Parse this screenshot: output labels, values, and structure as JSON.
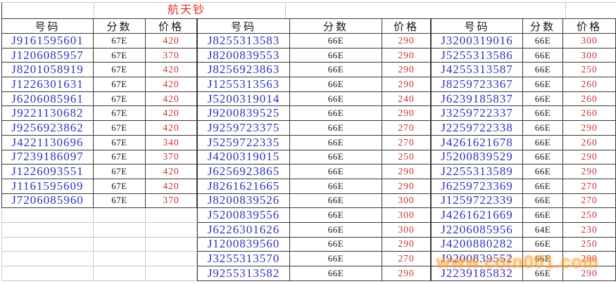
{
  "sheet": {
    "title": "航天钞",
    "watermark": "www.coin001.com",
    "header": [
      "号码",
      "分数",
      "价格"
    ],
    "groups": [
      {
        "name": "left",
        "empty_rows": 5,
        "rows": [
          [
            "J9161595601",
            "67E",
            "420"
          ],
          [
            "J1206085957",
            "67E",
            "370"
          ],
          [
            "J8201058919",
            "67E",
            "420"
          ],
          [
            "J1226301631",
            "67E",
            "420"
          ],
          [
            "J6206085961",
            "67E",
            "420"
          ],
          [
            "J9221130682",
            "67E",
            "420"
          ],
          [
            "J9256923862",
            "67E",
            "420"
          ],
          [
            "J4221130696",
            "67E",
            "340"
          ],
          [
            "J7239186097",
            "67E",
            "370"
          ],
          [
            "J1226093551",
            "67E",
            "420"
          ],
          [
            "J1161595609",
            "67E",
            "420"
          ],
          [
            "J7206085960",
            "67E",
            "370"
          ]
        ]
      },
      {
        "name": "middle",
        "empty_rows": 0,
        "rows": [
          [
            "J8255313583",
            "66E",
            "290"
          ],
          [
            "J8200839553",
            "66E",
            "290"
          ],
          [
            "J8256923863",
            "66E",
            "290"
          ],
          [
            "J1255313563",
            "66E",
            "290"
          ],
          [
            "J5200319014",
            "66E",
            "240"
          ],
          [
            "J9200839525",
            "66E",
            "290"
          ],
          [
            "J9259723375",
            "66E",
            "270"
          ],
          [
            "J5259722335",
            "66E",
            "270"
          ],
          [
            "J4200319015",
            "66E",
            "250"
          ],
          [
            "J6256923865",
            "66E",
            "290"
          ],
          [
            "J8261621665",
            "66E",
            "290"
          ],
          [
            "J8200839526",
            "66E",
            "300"
          ],
          [
            "J5200839556",
            "66E",
            "300"
          ],
          [
            "J6226301626",
            "66E",
            "300"
          ],
          [
            "J1200839560",
            "66E",
            "290"
          ],
          [
            "J3255313570",
            "66E",
            "270"
          ],
          [
            "J9255313582",
            "66E",
            "290"
          ]
        ]
      },
      {
        "name": "right",
        "empty_rows": 0,
        "rows": [
          [
            "J3200319016",
            "66E",
            "300"
          ],
          [
            "J5255313586",
            "66E",
            "300"
          ],
          [
            "J4255313587",
            "66E",
            "250"
          ],
          [
            "J8259723367",
            "66E",
            "260"
          ],
          [
            "J6239185837",
            "66E",
            "260"
          ],
          [
            "J3259722337",
            "66E",
            "260"
          ],
          [
            "J2259722338",
            "66E",
            "290"
          ],
          [
            "J4261621678",
            "66E",
            "260"
          ],
          [
            "J5200839529",
            "66E",
            "290"
          ],
          [
            "J2255313589",
            "66E",
            "290"
          ],
          [
            "J6259723369",
            "66E",
            "270"
          ],
          [
            "J1259722339",
            "66E",
            "270"
          ],
          [
            "J4261621669",
            "66E",
            "250"
          ],
          [
            "J2206085956",
            "64E",
            "230"
          ],
          [
            "J4200880282",
            "66E",
            "250"
          ],
          [
            "J9200839552",
            "66E",
            "290"
          ],
          [
            "J2239185832",
            "66E",
            "290"
          ]
        ]
      }
    ],
    "colors": {
      "title": "#E03030",
      "number": "#2F35B8",
      "grade": "#141414",
      "price": "#C43333",
      "border": "#3a3a3a",
      "gridline": "#c9c9c9",
      "watermark": "#FF9922"
    }
  }
}
